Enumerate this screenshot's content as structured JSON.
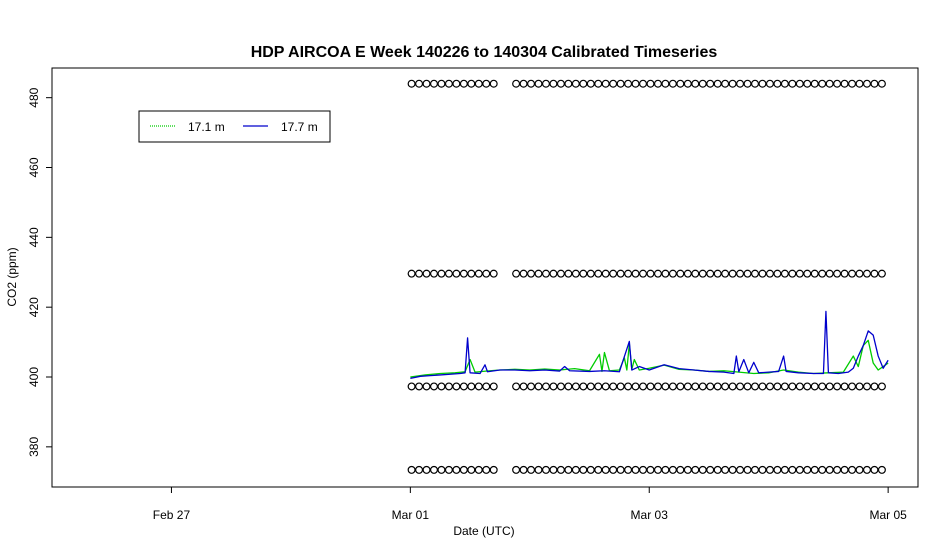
{
  "chart_data": {
    "type": "line",
    "title": "HDP AIRCOA E  Week 140226 to 140304  Calibrated Timeseries",
    "xlabel": "Date (UTC)",
    "ylabel": "CO2 (ppm)",
    "x_type": "date",
    "xlim": [
      "2014-02-26T00:00",
      "2014-03-05T06:00"
    ],
    "ylim": [
      368.5,
      488.5
    ],
    "x_ticks": [
      {
        "value": "2014-02-27",
        "label": "Feb 27"
      },
      {
        "value": "2014-03-01",
        "label": "Mar 01"
      },
      {
        "value": "2014-03-03",
        "label": "Mar 03"
      },
      {
        "value": "2014-03-05",
        "label": "Mar 05"
      }
    ],
    "y_ticks": [
      380,
      400,
      420,
      440,
      460,
      480
    ],
    "grid": false,
    "legend_position": "top-left",
    "series": [
      {
        "name": "17.1 m",
        "color": "#00cc00",
        "style": "line",
        "points": [
          [
            "2014-03-01T00:00",
            400.0
          ],
          [
            "2014-03-01T03:00",
            400.6
          ],
          [
            "2014-03-01T06:00",
            401.0
          ],
          [
            "2014-03-01T09:00",
            401.2
          ],
          [
            "2014-03-01T11:00",
            401.5
          ],
          [
            "2014-03-01T12:00",
            405.0
          ],
          [
            "2014-03-01T13:00",
            401.4
          ],
          [
            "2014-03-01T16:00",
            401.8
          ],
          [
            "2014-03-01T18:00",
            402.0
          ],
          [
            "2014-03-01T21:00",
            402.2
          ],
          [
            "2014-03-02T00:00",
            402.0
          ],
          [
            "2014-03-02T03:00",
            402.3
          ],
          [
            "2014-03-02T06:00",
            402.0
          ],
          [
            "2014-03-02T09:00",
            402.4
          ],
          [
            "2014-03-02T12:00",
            401.8
          ],
          [
            "2014-03-02T14:00",
            406.5
          ],
          [
            "2014-03-02T14:30",
            401.6
          ],
          [
            "2014-03-02T15:00",
            407.0
          ],
          [
            "2014-03-02T16:00",
            401.8
          ],
          [
            "2014-03-02T18:00",
            402.0
          ],
          [
            "2014-03-02T19:00",
            405.5
          ],
          [
            "2014-03-02T19:30",
            402.0
          ],
          [
            "2014-03-02T20:00",
            409.5
          ],
          [
            "2014-03-02T20:30",
            402.2
          ],
          [
            "2014-03-02T21:00",
            405.0
          ],
          [
            "2014-03-02T22:00",
            402.0
          ],
          [
            "2014-03-03T00:00",
            402.5
          ],
          [
            "2014-03-03T03:00",
            403.4
          ],
          [
            "2014-03-03T06:00",
            402.2
          ],
          [
            "2014-03-03T09:00",
            402.0
          ],
          [
            "2014-03-03T12:00",
            401.6
          ],
          [
            "2014-03-03T15:00",
            401.8
          ],
          [
            "2014-03-03T18:00",
            401.4
          ],
          [
            "2014-03-03T21:00",
            401.0
          ],
          [
            "2014-03-04T00:00",
            401.2
          ],
          [
            "2014-03-04T03:00",
            402.0
          ],
          [
            "2014-03-04T06:00",
            401.4
          ],
          [
            "2014-03-04T09:00",
            401.0
          ],
          [
            "2014-03-04T12:00",
            401.2
          ],
          [
            "2014-03-04T15:00",
            401.4
          ],
          [
            "2014-03-04T17:00",
            406.0
          ],
          [
            "2014-03-04T18:00",
            403.0
          ],
          [
            "2014-03-04T19:00",
            409.0
          ],
          [
            "2014-03-04T20:00",
            410.5
          ],
          [
            "2014-03-04T21:00",
            404.0
          ],
          [
            "2014-03-04T22:00",
            402.0
          ],
          [
            "2014-03-05T00:00",
            404.0
          ]
        ]
      },
      {
        "name": "17.7 m",
        "color": "#0000cc",
        "style": "line",
        "points": [
          [
            "2014-03-01T00:00",
            399.6
          ],
          [
            "2014-03-01T02:00",
            400.2
          ],
          [
            "2014-03-01T04:00",
            400.4
          ],
          [
            "2014-03-01T06:00",
            400.6
          ],
          [
            "2014-03-01T08:00",
            400.8
          ],
          [
            "2014-03-01T10:00",
            401.0
          ],
          [
            "2014-03-01T11:00",
            401.2
          ],
          [
            "2014-03-01T11:30",
            411.2
          ],
          [
            "2014-03-01T12:00",
            401.2
          ],
          [
            "2014-03-01T14:00",
            401.0
          ],
          [
            "2014-03-01T15:00",
            403.5
          ],
          [
            "2014-03-01T15:30",
            401.5
          ],
          [
            "2014-03-01T18:00",
            402.0
          ],
          [
            "2014-03-01T21:00",
            402.0
          ],
          [
            "2014-03-02T00:00",
            401.8
          ],
          [
            "2014-03-02T03:00",
            402.0
          ],
          [
            "2014-03-02T06:00",
            401.7
          ],
          [
            "2014-03-02T07:00",
            403.0
          ],
          [
            "2014-03-02T08:00",
            401.8
          ],
          [
            "2014-03-02T12:00",
            401.6
          ],
          [
            "2014-03-02T15:00",
            401.8
          ],
          [
            "2014-03-02T18:00",
            401.5
          ],
          [
            "2014-03-02T20:00",
            410.2
          ],
          [
            "2014-03-02T20:30",
            402.0
          ],
          [
            "2014-03-02T22:00",
            403.0
          ],
          [
            "2014-03-03T00:00",
            402.0
          ],
          [
            "2014-03-03T03:00",
            403.5
          ],
          [
            "2014-03-03T06:00",
            402.4
          ],
          [
            "2014-03-03T09:00",
            402.0
          ],
          [
            "2014-03-03T12:00",
            401.6
          ],
          [
            "2014-03-03T15:00",
            401.4
          ],
          [
            "2014-03-03T17:00",
            401.0
          ],
          [
            "2014-03-03T17:30",
            406.0
          ],
          [
            "2014-03-03T18:00",
            401.5
          ],
          [
            "2014-03-03T19:00",
            405.0
          ],
          [
            "2014-03-03T20:00",
            401.2
          ],
          [
            "2014-03-03T21:00",
            404.2
          ],
          [
            "2014-03-03T22:00",
            401.2
          ],
          [
            "2014-03-04T00:00",
            401.4
          ],
          [
            "2014-03-04T02:00",
            401.6
          ],
          [
            "2014-03-04T03:00",
            406.0
          ],
          [
            "2014-03-04T03:30",
            401.6
          ],
          [
            "2014-03-04T06:00",
            401.2
          ],
          [
            "2014-03-04T09:00",
            401.0
          ],
          [
            "2014-03-04T11:00",
            401.0
          ],
          [
            "2014-03-04T11:30",
            418.8
          ],
          [
            "2014-03-04T12:00",
            401.2
          ],
          [
            "2014-03-04T14:00",
            401.0
          ],
          [
            "2014-03-04T16:00",
            401.4
          ],
          [
            "2014-03-04T17:00",
            402.5
          ],
          [
            "2014-03-04T18:00",
            406.0
          ],
          [
            "2014-03-04T19:00",
            409.0
          ],
          [
            "2014-03-04T20:00",
            413.2
          ],
          [
            "2014-03-04T21:00",
            412.0
          ],
          [
            "2014-03-04T22:00",
            406.0
          ],
          [
            "2014-03-04T23:00",
            402.5
          ],
          [
            "2014-03-05T00:00",
            404.8
          ]
        ]
      },
      {
        "name": "",
        "color": "#000000",
        "style": "markers",
        "marker": "open-circle",
        "groups": [
          {
            "y": 484.0,
            "segments": [
              [
                "2014-03-01T00:15",
                "2014-03-01T16:45"
              ],
              [
                "2014-03-01T21:15",
                "2014-03-05T00:00"
              ]
            ]
          },
          {
            "y": 429.6,
            "segments": [
              [
                "2014-03-01T00:15",
                "2014-03-01T16:45"
              ],
              [
                "2014-03-01T21:15",
                "2014-03-05T00:00"
              ]
            ]
          },
          {
            "y": 397.3,
            "segments": [
              [
                "2014-03-01T00:15",
                "2014-03-01T16:45"
              ],
              [
                "2014-03-01T21:15",
                "2014-03-05T00:00"
              ]
            ]
          },
          {
            "y": 373.4,
            "segments": [
              [
                "2014-03-01T00:15",
                "2014-03-01T16:45"
              ],
              [
                "2014-03-01T21:15",
                "2014-03-05T00:00"
              ]
            ]
          }
        ],
        "spacing_hours": 1.5
      }
    ]
  }
}
